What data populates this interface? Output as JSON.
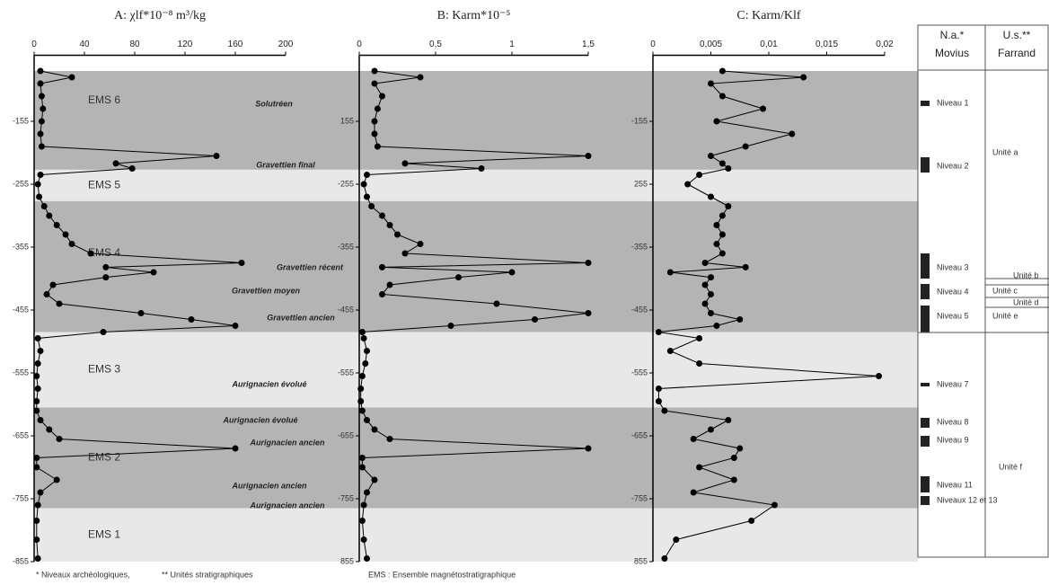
{
  "chart_data": [
    {
      "type": "line",
      "title": "A: χlf*10⁻⁸ m³/kg",
      "y": [
        -75,
        -85,
        -95,
        -115,
        -135,
        -155,
        -175,
        -195,
        -210,
        -222,
        -230,
        -240,
        -255,
        -275,
        -290,
        -305,
        -320,
        -335,
        -350,
        -365,
        -380,
        -387,
        -395,
        -403,
        -415,
        -430,
        -445,
        -460,
        -470,
        -480,
        -490,
        -500,
        -520,
        -540,
        -560,
        -580,
        -600,
        -615,
        -630,
        -645,
        -660,
        -675,
        -690,
        -705,
        -725,
        -745,
        -765,
        -790,
        -820,
        -850
      ],
      "values": [
        5,
        30,
        5,
        6,
        7,
        6,
        5,
        6,
        145,
        65,
        78,
        5,
        3,
        4,
        8,
        12,
        18,
        25,
        30,
        45,
        165,
        57,
        95,
        57,
        15,
        10,
        20,
        85,
        125,
        160,
        55,
        3,
        5,
        3,
        2,
        3,
        2,
        2,
        5,
        12,
        20,
        160,
        2,
        2,
        18,
        5,
        3,
        2,
        2,
        3
      ],
      "color": "#000000",
      "xlim": [
        0,
        200
      ],
      "xticks": [
        0,
        40,
        80,
        120,
        160,
        200
      ],
      "ylim": [
        -855,
        -50
      ],
      "yticks": [
        -155,
        -255,
        -355,
        -455,
        -555,
        -655,
        -755,
        -855
      ]
    },
    {
      "type": "line",
      "title": "B: Karm*10⁻⁵",
      "y": [
        -75,
        -85,
        -95,
        -115,
        -135,
        -155,
        -175,
        -195,
        -210,
        -222,
        -230,
        -240,
        -255,
        -275,
        -290,
        -305,
        -320,
        -335,
        -350,
        -365,
        -380,
        -387,
        -395,
        -403,
        -415,
        -430,
        -445,
        -460,
        -470,
        -480,
        -490,
        -500,
        -520,
        -540,
        -560,
        -580,
        -600,
        -615,
        -630,
        -645,
        -660,
        -675,
        -690,
        -705,
        -725,
        -745,
        -765,
        -790,
        -820,
        -850
      ],
      "values": [
        0.1,
        0.4,
        0.1,
        0.15,
        0.12,
        0.1,
        0.1,
        0.12,
        1.5,
        0.3,
        0.8,
        0.05,
        0.03,
        0.05,
        0.08,
        0.15,
        0.2,
        0.25,
        0.4,
        0.3,
        1.5,
        0.15,
        1.0,
        0.65,
        0.2,
        0.15,
        0.9,
        1.5,
        1.15,
        0.6,
        0.02,
        0.03,
        0.05,
        0.04,
        0.02,
        0.01,
        0.01,
        0.02,
        0.05,
        0.1,
        0.2,
        1.5,
        0.02,
        0.02,
        0.1,
        0.05,
        0.03,
        0.02,
        0.03,
        0.05
      ],
      "color": "#000000",
      "xlim": [
        0,
        1.5
      ],
      "xticks": [
        0,
        {
          "value": 0.5,
          "label": "0,5"
        },
        1,
        {
          "value": 1.5,
          "label": "1,5"
        }
      ],
      "ylim": [
        -855,
        -50
      ],
      "yticks": [
        {
          "value": -155,
          "label": "155"
        },
        -255,
        -355,
        -455,
        -555,
        -655,
        -755,
        {
          "value": -855,
          "label": "855"
        }
      ]
    },
    {
      "type": "line",
      "title": "C: Karm/Klf",
      "y": [
        -75,
        -85,
        -95,
        -115,
        -135,
        -155,
        -175,
        -195,
        -210,
        -222,
        -230,
        -240,
        -255,
        -275,
        -290,
        -305,
        -320,
        -335,
        -350,
        -365,
        -380,
        -387,
        -395,
        -403,
        -415,
        -430,
        -445,
        -460,
        -470,
        -480,
        -490,
        -500,
        -520,
        -540,
        -560,
        -580,
        -600,
        -615,
        -630,
        -645,
        -660,
        -675,
        -690,
        -705,
        -725,
        -745,
        -765,
        -790,
        -820,
        -850
      ],
      "values": [
        0.006,
        0.013,
        0.005,
        0.006,
        0.0095,
        0.0055,
        0.012,
        0.008,
        0.005,
        0.006,
        0.0065,
        0.004,
        0.003,
        0.005,
        0.0065,
        0.006,
        0.0055,
        0.006,
        0.0055,
        0.006,
        0.0045,
        0.008,
        0.0015,
        0.005,
        0.0045,
        0.005,
        0.0045,
        0.005,
        0.0075,
        0.0055,
        0.0005,
        0.004,
        0.0015,
        0.004,
        0.0195,
        0.0005,
        0.0005,
        0.001,
        0.0065,
        0.005,
        0.0035,
        0.0075,
        0.007,
        0.004,
        0.007,
        0.0035,
        0.0105,
        0.0085,
        0.002,
        0.001
      ],
      "color": "#000000",
      "xlim": [
        0,
        0.02
      ],
      "xticks": [
        0,
        {
          "value": 0.005,
          "label": "0,005"
        },
        {
          "value": 0.01,
          "label": "0,01"
        },
        {
          "value": 0.015,
          "label": "0,015"
        },
        {
          "value": 0.02,
          "label": "0,02"
        }
      ],
      "ylim": [
        -855,
        -50
      ],
      "yticks": [
        -155,
        {
          "value": -255,
          "label": "255"
        },
        -355,
        -455,
        -555,
        -655,
        -755,
        {
          "value": -855,
          "label": "855"
        }
      ]
    }
  ],
  "bands": [
    {
      "label": "EMS 6",
      "from": -75,
      "to": -232,
      "color": "#b4b4b4"
    },
    {
      "label": "EMS 5",
      "from": -232,
      "to": -282,
      "color": "#e8e8e8"
    },
    {
      "label": "EMS 4",
      "from": -282,
      "to": -490,
      "color": "#b4b4b4"
    },
    {
      "label": "EMS 3",
      "from": -490,
      "to": -610,
      "color": "#e8e8e8"
    },
    {
      "label": "EMS 2",
      "from": -610,
      "to": -770,
      "color": "#b4b4b4"
    },
    {
      "label": "EMS 1",
      "from": -770,
      "to": -855,
      "color": "#e8e8e8"
    }
  ],
  "annotations": [
    "Solutréen",
    "Gravettien final",
    "Gravettien récent",
    "Gravettien moyen",
    "Gravettien ancien",
    "Aurignacien évolué",
    "Aurignacien évolué",
    "Aurignacien ancien",
    "Aurignacien ancien",
    "Aurignacien ancien"
  ],
  "stratigraphy": {
    "headers": [
      [
        "N.a.*",
        "Movius"
      ],
      [
        "U.s.**",
        "Farrand"
      ]
    ],
    "niveaux": [
      "Niveau 1",
      "Niveau 2",
      "Niveau 3",
      "Niveau 4",
      "Niveau 5",
      "Niveau 7",
      "Niveau 8",
      "Niveau 9",
      "Niveau 11",
      "Niveaux 12 et 13"
    ],
    "unites": [
      "Unité a",
      "Unité b",
      "Unité c",
      "Unité d",
      "Unité e",
      "Unité f"
    ]
  },
  "footnotes": [
    "* Niveaux archéologiques,",
    "** Unités stratigraphiques",
    "EMS : Ensemble magnétostratigraphique"
  ]
}
